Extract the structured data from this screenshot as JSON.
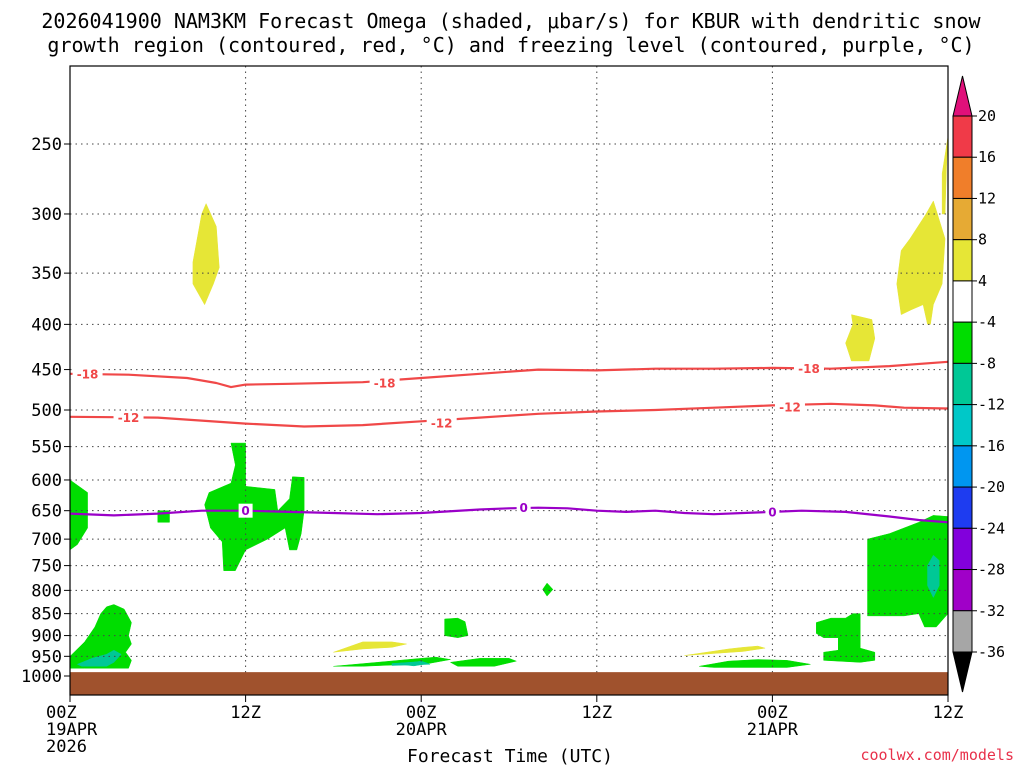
{
  "chart_data": {
    "type": "heatmap",
    "title_lines": [
      "2026041900 NAM3KM Forecast Omega (shaded, μbar/s) for KBUR with dendritic snow",
      "growth region (contoured, red, °C) and freezing level (contoured, purple, °C)"
    ],
    "xlabel": "Forecast Time (UTC)",
    "credit": "coolwx.com/models",
    "x_unit": "hours since 19APR 00Z",
    "xlim": [
      0,
      60
    ],
    "x_ticks": [
      {
        "hour": 0,
        "lines": [
          "00Z",
          "19APR",
          "2026"
        ]
      },
      {
        "hour": 12,
        "lines": [
          "12Z"
        ]
      },
      {
        "hour": 24,
        "lines": [
          "00Z",
          "20APR"
        ]
      },
      {
        "hour": 36,
        "lines": [
          "12Z"
        ]
      },
      {
        "hour": 48,
        "lines": [
          "00Z",
          "21APR"
        ]
      },
      {
        "hour": 60,
        "lines": [
          "12Z"
        ]
      }
    ],
    "y_unit": "hPa",
    "ylim": [
      1025,
      200
    ],
    "y_ticks": [
      250,
      300,
      350,
      400,
      450,
      500,
      550,
      600,
      650,
      700,
      750,
      800,
      850,
      900,
      950,
      1000
    ],
    "grid": true,
    "ground_level_hpa": 990,
    "colorbar": {
      "ticks": [
        "20",
        "16",
        "12",
        "8",
        "4",
        "-4",
        "-8",
        "-12",
        "-16",
        "-20",
        "-24",
        "-28",
        "-32",
        "-36"
      ],
      "colors": [
        "#f03a48",
        "#f07e2a",
        "#e6aa34",
        "#e6e636",
        "#ffffff",
        "#00dd00",
        "#00c896",
        "#00c8c8",
        "#0096f0",
        "#1e3cf0",
        "#8200dc",
        "#a000c8",
        "#a6a6a6"
      ],
      "top_arrow_color": "#e0107a",
      "bottom_arrow_color": "#000000"
    },
    "colors": {
      "dgz": "#f04848",
      "freezing": "#9a00c8",
      "ground": "#a0522d",
      "green": "#00dd00",
      "teal": "#00c896",
      "yellow": "#e6e636"
    },
    "contours": [
      {
        "name": "-18",
        "color": "#f04848",
        "points": [
          [
            0,
            455
          ],
          [
            4,
            456
          ],
          [
            8,
            460
          ],
          [
            10,
            466
          ],
          [
            11,
            471
          ],
          [
            12,
            468
          ],
          [
            15,
            467
          ],
          [
            20,
            465
          ],
          [
            24,
            460
          ],
          [
            28,
            455
          ],
          [
            32,
            450
          ],
          [
            36,
            451
          ],
          [
            40,
            449
          ],
          [
            44,
            449
          ],
          [
            48,
            448
          ],
          [
            52,
            449
          ],
          [
            56,
            446
          ],
          [
            60,
            441
          ]
        ],
        "labels": [
          [
            1.2,
            455
          ],
          [
            21.5,
            466
          ],
          [
            50.5,
            449
          ]
        ]
      },
      {
        "name": "-12",
        "color": "#f04848",
        "points": [
          [
            0,
            509
          ],
          [
            6,
            510
          ],
          [
            12,
            518
          ],
          [
            16,
            522
          ],
          [
            20,
            520
          ],
          [
            24,
            515
          ],
          [
            28,
            510
          ],
          [
            32,
            505
          ],
          [
            36,
            502
          ],
          [
            40,
            500
          ],
          [
            44,
            497
          ],
          [
            48,
            494
          ],
          [
            52,
            492
          ],
          [
            55,
            494
          ],
          [
            57,
            497
          ],
          [
            60,
            498
          ]
        ],
        "labels": [
          [
            4,
            510
          ],
          [
            25.4,
            517
          ],
          [
            49.2,
            496
          ]
        ]
      },
      {
        "name": "0",
        "color": "#9a00c8",
        "points": [
          [
            0,
            655
          ],
          [
            3,
            658
          ],
          [
            6,
            655
          ],
          [
            9,
            650
          ],
          [
            12,
            650
          ],
          [
            15,
            652
          ],
          [
            18,
            654
          ],
          [
            21,
            656
          ],
          [
            24,
            654
          ],
          [
            28,
            648
          ],
          [
            30,
            646
          ],
          [
            32,
            645
          ],
          [
            34,
            646
          ],
          [
            36,
            650
          ],
          [
            38,
            652
          ],
          [
            40,
            650
          ],
          [
            42,
            654
          ],
          [
            44,
            656
          ],
          [
            46,
            654
          ],
          [
            48,
            652
          ],
          [
            50,
            650
          ],
          [
            53,
            652
          ],
          [
            56,
            660
          ],
          [
            58,
            666
          ],
          [
            60,
            670
          ]
        ],
        "labels": [
          [
            12,
            650
          ],
          [
            31,
            645
          ],
          [
            48,
            652
          ]
        ]
      }
    ],
    "shaded_regions": [
      {
        "value": 8,
        "color": "#e6e636",
        "points": [
          [
            8.4,
            340
          ],
          [
            9,
            300
          ],
          [
            9.3,
            292
          ],
          [
            10,
            310
          ],
          [
            10.2,
            345
          ],
          [
            9.8,
            360
          ],
          [
            9.2,
            380
          ],
          [
            8.4,
            360
          ]
        ]
      },
      {
        "value": 8,
        "color": "#e6e636",
        "points": [
          [
            59.8,
            300
          ],
          [
            59.9,
            265
          ],
          [
            60,
            245
          ],
          [
            59.6,
            270
          ],
          [
            59.6,
            300
          ]
        ]
      },
      {
        "value": 8,
        "color": "#e6e636",
        "points": [
          [
            56.5,
            360
          ],
          [
            56.8,
            330
          ],
          [
            57.4,
            320
          ],
          [
            58.5,
            300
          ],
          [
            59,
            290
          ],
          [
            59.8,
            320
          ],
          [
            59.6,
            360
          ],
          [
            59,
            380
          ],
          [
            58.8,
            400
          ],
          [
            58.6,
            400
          ],
          [
            58.3,
            380
          ],
          [
            57.5,
            385
          ],
          [
            56.8,
            390
          ]
        ]
      },
      {
        "value": 8,
        "color": "#e6e636",
        "points": [
          [
            53,
            420
          ],
          [
            53.5,
            400
          ],
          [
            53.4,
            390
          ],
          [
            54.8,
            395
          ],
          [
            55,
            415
          ],
          [
            54.6,
            440
          ],
          [
            53.4,
            440
          ]
        ]
      },
      {
        "value": 8,
        "color": "#e6e636",
        "points": [
          [
            18,
            940
          ],
          [
            20,
            915
          ],
          [
            22,
            915
          ],
          [
            23,
            920
          ],
          [
            22,
            928
          ],
          [
            20,
            932
          ]
        ]
      },
      {
        "value": 8,
        "color": "#e6e636",
        "points": [
          [
            42,
            948
          ],
          [
            45,
            932
          ],
          [
            46,
            928
          ],
          [
            47,
            925
          ],
          [
            47.5,
            930
          ],
          [
            46,
            938
          ],
          [
            44,
            943
          ]
        ]
      },
      {
        "value": -4,
        "color": "#00dd00",
        "points": [
          [
            0,
            600
          ],
          [
            1.2,
            620
          ],
          [
            1.2,
            680
          ],
          [
            0.5,
            710
          ],
          [
            0,
            720
          ]
        ]
      },
      {
        "value": -4,
        "color": "#00dd00",
        "points": [
          [
            6,
            650
          ],
          [
            6.8,
            650
          ],
          [
            6.8,
            670
          ],
          [
            6,
            670
          ]
        ]
      },
      {
        "value": -4,
        "color": "#00dd00",
        "points": [
          [
            9.5,
            620
          ],
          [
            11,
            605
          ],
          [
            11.3,
            577
          ],
          [
            11,
            545
          ],
          [
            12,
            545
          ],
          [
            12,
            610
          ],
          [
            14,
            615
          ],
          [
            14.2,
            650
          ],
          [
            15,
            630
          ],
          [
            15.2,
            595
          ],
          [
            16,
            596
          ],
          [
            16,
            650
          ],
          [
            15.8,
            690
          ],
          [
            15.5,
            720
          ],
          [
            15,
            720
          ],
          [
            14.7,
            680
          ],
          [
            13.5,
            700
          ],
          [
            12,
            720
          ],
          [
            11.3,
            760
          ],
          [
            10.5,
            760
          ],
          [
            10.4,
            705
          ],
          [
            9.6,
            680
          ],
          [
            9.2,
            640
          ]
        ]
      },
      {
        "value": -4,
        "color": "#00dd00",
        "points": [
          [
            0,
            950
          ],
          [
            1,
            915
          ],
          [
            1.7,
            880
          ],
          [
            2.1,
            850
          ],
          [
            2.5,
            835
          ],
          [
            3,
            830
          ],
          [
            3.7,
            840
          ],
          [
            4.2,
            870
          ],
          [
            4,
            900
          ],
          [
            4.2,
            920
          ],
          [
            3.8,
            940
          ],
          [
            4.2,
            960
          ],
          [
            4,
            980
          ],
          [
            1,
            980
          ],
          [
            0,
            980
          ]
        ]
      },
      {
        "value": -4,
        "color": "#00dd00",
        "points": [
          [
            54.5,
            700
          ],
          [
            56,
            690
          ],
          [
            58,
            670
          ],
          [
            59,
            658
          ],
          [
            60,
            660
          ],
          [
            60,
            850
          ],
          [
            59.2,
            880
          ],
          [
            58.4,
            880
          ],
          [
            58,
            850
          ],
          [
            57,
            855
          ],
          [
            54.5,
            855
          ]
        ]
      },
      {
        "value": -4,
        "color": "#00dd00",
        "points": [
          [
            51,
            870
          ],
          [
            52,
            860
          ],
          [
            53,
            860
          ],
          [
            53.5,
            850
          ],
          [
            54,
            850
          ],
          [
            54,
            930
          ],
          [
            55,
            940
          ],
          [
            55,
            960
          ],
          [
            54,
            965
          ],
          [
            51.5,
            960
          ],
          [
            51.5,
            940
          ],
          [
            52.5,
            935
          ],
          [
            52.5,
            905
          ],
          [
            51.5,
            905
          ],
          [
            51,
            895
          ]
        ]
      },
      {
        "value": -4,
        "color": "#00dd00",
        "points": [
          [
            32.3,
            798
          ],
          [
            32.6,
            785
          ],
          [
            33,
            798
          ],
          [
            32.6,
            812
          ]
        ]
      },
      {
        "value": -4,
        "color": "#00dd00",
        "points": [
          [
            26,
            965
          ],
          [
            28,
            955
          ],
          [
            30,
            955
          ],
          [
            30.5,
            962
          ],
          [
            29,
            975
          ],
          [
            26.5,
            975
          ]
        ]
      },
      {
        "value": -4,
        "color": "#00dd00",
        "points": [
          [
            18,
            975
          ],
          [
            21,
            965
          ],
          [
            24,
            955
          ],
          [
            25,
            952
          ],
          [
            26,
            958
          ],
          [
            24.5,
            968
          ],
          [
            20,
            975
          ]
        ]
      },
      {
        "value": -4,
        "color": "#00dd00",
        "points": [
          [
            25.6,
            862
          ],
          [
            26.5,
            860
          ],
          [
            27,
            868
          ],
          [
            27.2,
            900
          ],
          [
            26.5,
            905
          ],
          [
            25.6,
            900
          ]
        ]
      },
      {
        "value": -4,
        "color": "#00dd00",
        "points": [
          [
            43,
            975
          ],
          [
            45,
            962
          ],
          [
            47,
            958
          ],
          [
            49,
            960
          ],
          [
            50.6,
            970
          ],
          [
            49,
            978
          ],
          [
            44,
            978
          ]
        ]
      },
      {
        "value": -8,
        "color": "#00c896",
        "points": [
          [
            0.5,
            970
          ],
          [
            1.5,
            955
          ],
          [
            2.5,
            945
          ],
          [
            3,
            935
          ],
          [
            3.5,
            945
          ],
          [
            3,
            965
          ],
          [
            2.5,
            975
          ],
          [
            0.8,
            975
          ]
        ]
      },
      {
        "value": -8,
        "color": "#00c896",
        "points": [
          [
            58.6,
            750
          ],
          [
            59,
            730
          ],
          [
            59.4,
            740
          ],
          [
            59.4,
            790
          ],
          [
            59,
            815
          ],
          [
            58.6,
            790
          ]
        ]
      },
      {
        "value": -8,
        "color": "#00c896",
        "points": [
          [
            22.5,
            970
          ],
          [
            24,
            962
          ],
          [
            24.5,
            968
          ],
          [
            23.5,
            974
          ]
        ]
      },
      {
        "value": -8,
        "color": "#00c896",
        "points": [
          [
            22,
            968
          ],
          [
            24,
            963
          ],
          [
            24.6,
            970
          ],
          [
            22,
            973
          ]
        ]
      }
    ]
  }
}
